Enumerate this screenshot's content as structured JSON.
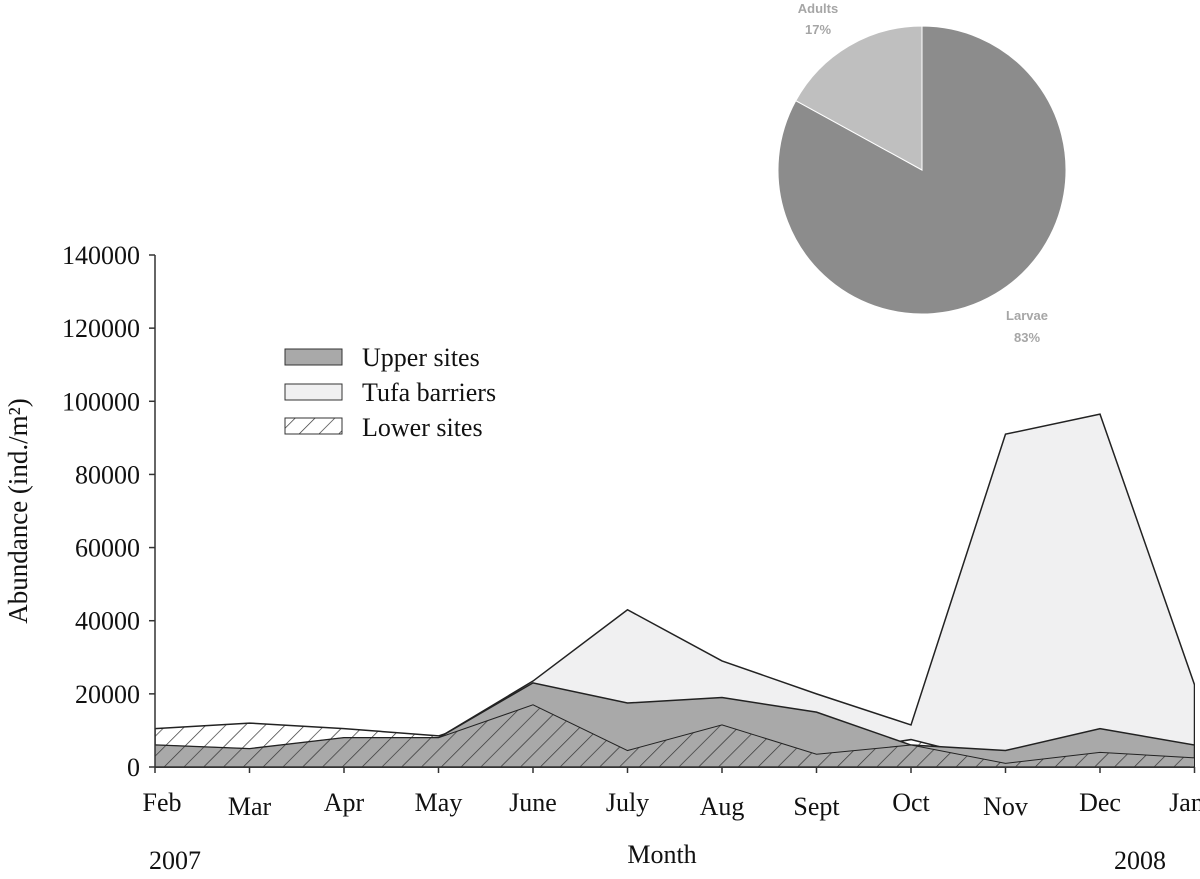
{
  "chart_data": [
    {
      "type": "area",
      "stacking": "overlay",
      "categories": [
        "Feb",
        "Mar",
        "Apr",
        "May",
        "June",
        "July",
        "Aug",
        "Sept",
        "Oct",
        "Nov",
        "Dec",
        "Jan"
      ],
      "year_labels": {
        "start": "2007",
        "end": "2008"
      },
      "xlabel": "Month",
      "ylabel": "Abundance  (ind./m²)",
      "ylim": [
        0,
        140000
      ],
      "yticks": [
        "0",
        "20000",
        "40000",
        "60000",
        "80000",
        "100000",
        "120000",
        "140000"
      ],
      "legend_position": "upper-left",
      "grid": false,
      "series": [
        {
          "name": "Tufa barriers",
          "pattern": "solid",
          "color": "#f0f0f1",
          "values": [
            7500,
            5000,
            7000,
            8000,
            23500,
            43000,
            29000,
            20000,
            11500,
            91000,
            96500,
            22500
          ]
        },
        {
          "name": "Lower sites",
          "pattern": "hatch",
          "color": "#ffffff",
          "values": [
            10500,
            12000,
            10500,
            8500,
            17000,
            4500,
            11500,
            3500,
            7500,
            1000,
            4000,
            2500
          ]
        },
        {
          "name": "Upper sites",
          "pattern": "solid",
          "color": "#a9a9a9",
          "values": [
            6000,
            5000,
            8000,
            8000,
            23000,
            17500,
            19000,
            15000,
            6000,
            4500,
            10500,
            6000
          ]
        }
      ]
    },
    {
      "type": "pie",
      "slices": [
        {
          "label": "Larvae",
          "value": 83,
          "value_label": "83%",
          "color": "#8c8c8c"
        },
        {
          "label": "Adults",
          "value": 17,
          "value_label": "17%",
          "color": "#bfbfbf"
        }
      ]
    }
  ]
}
